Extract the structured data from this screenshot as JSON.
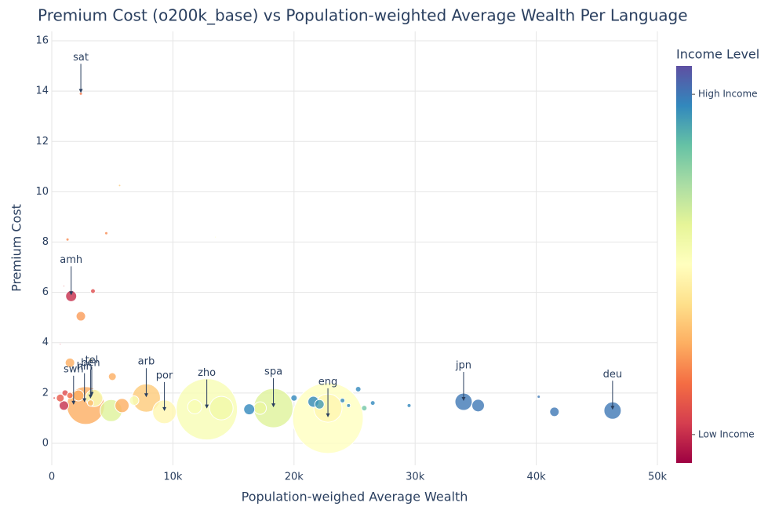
{
  "chart_data": {
    "type": "scatter",
    "title": "Premium Cost (o200k_base) vs Population-weighted Average Wealth Per Language",
    "x_label": "Population-weighed Average Wealth",
    "y_label": "Premium Cost",
    "colorbar_title": "Income Level",
    "colorscale": [
      "#9e0142",
      "#d53e4f",
      "#f46d43",
      "#fdae61",
      "#fee08b",
      "#ffffbf",
      "#e6f598",
      "#abdda4",
      "#66c2a5",
      "#3288bd",
      "#5e4fa2"
    ],
    "clim": [
      0.75,
      4.25
    ],
    "cticks": [
      {
        "value": 1,
        "label": "Low Income"
      },
      {
        "value": 4,
        "label": "High Income"
      }
    ],
    "xlim": [
      0,
      50000
    ],
    "xticks": [
      0,
      {
        "value": 10000,
        "label": "10k"
      },
      {
        "value": 20000,
        "label": "20k"
      },
      {
        "value": 30000,
        "label": "30k"
      },
      {
        "value": 40000,
        "label": "40k"
      },
      {
        "value": 50000,
        "label": "50k"
      }
    ],
    "ylim": [
      -0.875,
      16.375
    ],
    "yticks": [
      0,
      2,
      4,
      6,
      8,
      10,
      12,
      14,
      16
    ],
    "grid": true,
    "x": [
      22800,
      12800,
      18300,
      2800,
      7800,
      22800,
      9300,
      14000,
      4900,
      3500,
      34000,
      46300,
      5800,
      11800,
      17200,
      35200,
      1600,
      16300,
      21600,
      2200,
      1500,
      2400,
      6800,
      22100,
      1000,
      41500,
      5000,
      700,
      1100,
      1500,
      3200,
      20000,
      25300,
      25800,
      3400,
      24000,
      26500,
      3200,
      24500,
      29500,
      2400,
      1300,
      4500,
      40200,
      5600,
      13500,
      1000,
      700,
      200
    ],
    "y": [
      1.0,
      1.35,
      1.4,
      1.5,
      1.8,
      1.4,
      1.25,
      1.4,
      1.3,
      1.8,
      1.65,
      1.3,
      1.5,
      1.45,
      1.4,
      1.5,
      5.85,
      1.35,
      1.65,
      1.9,
      3.2,
      5.05,
      1.7,
      1.55,
      1.5,
      1.25,
      2.65,
      1.8,
      2.0,
      1.9,
      1.6,
      1.8,
      2.15,
      1.4,
      6.05,
      1.7,
      1.6,
      3.3,
      1.5,
      1.5,
      13.9,
      8.1,
      8.35,
      1.85,
      10.25,
      8.2,
      6.25,
      3.95,
      1.8
    ],
    "sizes": [
      90,
      78,
      50,
      48,
      36,
      36,
      30,
      30,
      28,
      22,
      22,
      22,
      18,
      18,
      16,
      16,
      14,
      14,
      14,
      14,
      12,
      12,
      12,
      12,
      12,
      12,
      10,
      10,
      8,
      8,
      8,
      8,
      7,
      7,
      6,
      6,
      6,
      5,
      5,
      5,
      4,
      4,
      4,
      4,
      3,
      2,
      2,
      2,
      3
    ],
    "income": [
      2.5,
      2.6,
      2.9,
      1.8,
      2.0,
      2.4,
      2.4,
      2.7,
      2.9,
      2.6,
      4.0,
      4.0,
      1.8,
      2.6,
      2.8,
      4.0,
      1.0,
      3.9,
      3.9,
      1.8,
      1.8,
      1.7,
      2.6,
      3.8,
      1.0,
      4.0,
      1.8,
      1.3,
      1.2,
      1.4,
      1.9,
      3.9,
      3.9,
      3.5,
      1.2,
      3.9,
      3.9,
      2.2,
      3.9,
      3.9,
      1.5,
      1.6,
      1.6,
      4.0,
      2.0,
      2.5,
      1.2,
      1.1,
      1.2
    ],
    "annotations": [
      {
        "text": "sat",
        "x": 2400,
        "y": 13.9
      },
      {
        "text": "amh",
        "x": 1600,
        "y": 5.85
      },
      {
        "text": "swh",
        "x": 1800,
        "y": 1.5
      },
      {
        "text": "hin",
        "x": 2700,
        "y": 1.6
      },
      {
        "text": "ben",
        "x": 3200,
        "y": 1.75
      },
      {
        "text": "tel",
        "x": 3300,
        "y": 1.85
      },
      {
        "text": "arb",
        "x": 7800,
        "y": 1.8
      },
      {
        "text": "por",
        "x": 9300,
        "y": 1.25
      },
      {
        "text": "zho",
        "x": 12800,
        "y": 1.35
      },
      {
        "text": "spa",
        "x": 18300,
        "y": 1.4
      },
      {
        "text": "eng",
        "x": 22800,
        "y": 1.0
      },
      {
        "text": "jpn",
        "x": 34000,
        "y": 1.65
      },
      {
        "text": "deu",
        "x": 46300,
        "y": 1.3
      }
    ]
  }
}
